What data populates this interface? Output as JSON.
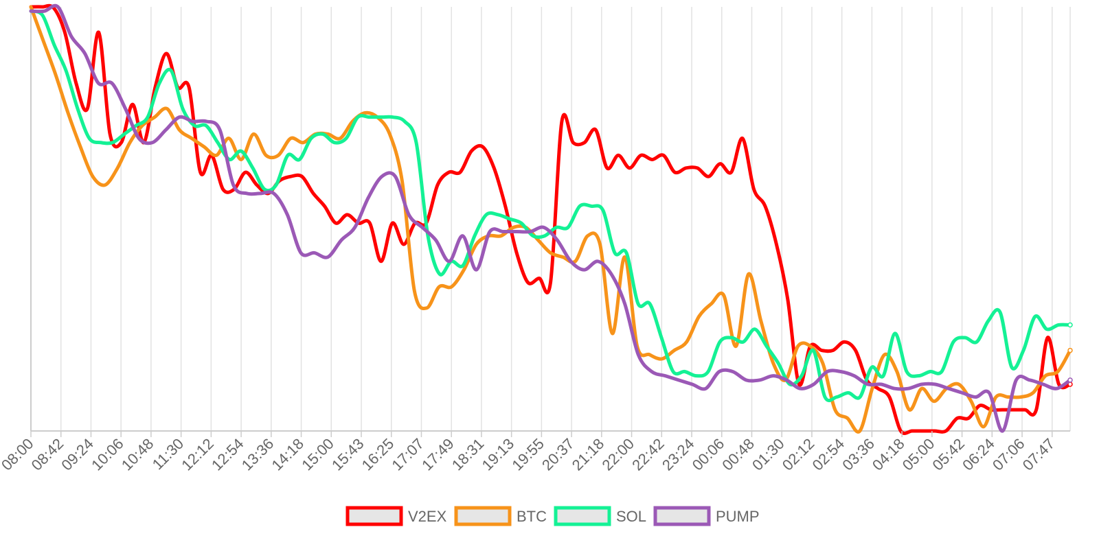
{
  "chart_data": {
    "type": "line",
    "title": "",
    "xlabel": "",
    "ylabel": "",
    "grid": {
      "vertical": true,
      "horizontal": false
    },
    "y_axis_labels": false,
    "ylim": [
      0,
      100
    ],
    "legend_position": "bottom-center",
    "x_tick_labels": [
      "08:00",
      "08:42",
      "09:24",
      "10:06",
      "10:48",
      "11:30",
      "12:12",
      "12:54",
      "13:36",
      "14:18",
      "15:00",
      "15:43",
      "16:25",
      "17:07",
      "17:49",
      "18:31",
      "19:13",
      "19:55",
      "20:37",
      "21:18",
      "22:00",
      "22:42",
      "23:24",
      "00:06",
      "00:48",
      "01:30",
      "02:12",
      "02:54",
      "03:36",
      "04:18",
      "05:00",
      "05:42",
      "06:24",
      "07:06",
      "07:47"
    ],
    "x_span_ticks": 34.6,
    "series": [
      {
        "name": "V2EX",
        "color": "#ff0000",
        "values": [
          100,
          100,
          99.8,
          94,
          82,
          76,
          94,
          70,
          68,
          77,
          68,
          81,
          89,
          81,
          81,
          61,
          65,
          57,
          57,
          61,
          58,
          56,
          59,
          60,
          60,
          56,
          53,
          49,
          51,
          49,
          49,
          40,
          49,
          44,
          49,
          49,
          58,
          61,
          61,
          66,
          67,
          62,
          53,
          42,
          35,
          36,
          35,
          73,
          68,
          68,
          71,
          62,
          65,
          62,
          65,
          64,
          65,
          61,
          62,
          62,
          60,
          63,
          61,
          69,
          57,
          53,
          44,
          31,
          11,
          20,
          19,
          19,
          21,
          19,
          12,
          10,
          8,
          0,
          0,
          0,
          0,
          0,
          3,
          3,
          6,
          5,
          5,
          5,
          5,
          5,
          22,
          11,
          11
        ]
      },
      {
        "name": "BTC",
        "color": "#f7931a",
        "values": [
          100,
          92,
          84,
          75,
          67,
          60,
          58,
          62,
          68,
          72,
          74,
          76,
          71,
          69,
          67,
          65,
          69,
          64,
          70,
          65,
          65,
          69,
          68,
          70,
          70,
          69,
          73,
          75,
          74,
          70,
          59,
          33,
          29,
          34,
          34,
          38,
          44,
          46,
          46,
          48,
          48,
          45,
          42,
          41,
          40,
          46,
          44,
          23,
          41,
          20,
          18,
          17,
          19,
          21,
          27,
          30,
          32,
          20,
          37,
          26,
          16,
          12,
          20,
          20,
          16,
          5,
          3,
          0,
          10,
          18,
          14,
          5,
          10,
          7,
          10,
          11,
          7,
          1,
          8,
          8,
          8,
          9,
          13,
          14,
          19
        ]
      },
      {
        "name": "SOL",
        "color": "#14f195",
        "values": [
          99,
          98,
          91,
          85,
          76,
          69,
          68,
          68,
          70,
          72,
          74,
          82,
          85,
          76,
          72,
          72,
          68,
          64,
          66,
          62,
          57,
          58,
          65,
          64,
          69,
          70,
          68,
          69,
          74,
          74,
          74,
          74,
          73,
          68,
          46,
          37,
          40,
          39,
          46,
          51,
          51,
          50,
          49,
          46,
          46,
          48,
          48,
          53,
          53,
          52,
          42,
          42,
          30,
          30,
          22,
          14,
          14,
          13,
          14,
          21,
          22,
          21,
          24,
          20,
          16,
          11,
          13,
          19,
          8,
          8,
          9,
          8,
          15,
          13,
          23,
          14,
          13,
          14,
          14,
          21,
          22,
          21,
          26,
          28,
          15,
          19,
          27,
          24,
          25,
          25
        ]
      },
      {
        "name": "PUMP",
        "color": "#9b59b6",
        "values": [
          99,
          99,
          100,
          93,
          89,
          82,
          82,
          76,
          69,
          68,
          71,
          74,
          73,
          73,
          71,
          58,
          56,
          56,
          56,
          51,
          42,
          42,
          41,
          45,
          48,
          55,
          60,
          60,
          51,
          48,
          45,
          40,
          46,
          38,
          47,
          47,
          47,
          47,
          48,
          45,
          40,
          38,
          40,
          37,
          30,
          18,
          14,
          13,
          12,
          11,
          10,
          14,
          14,
          12,
          12,
          13,
          12,
          10,
          11,
          14,
          14,
          13,
          11,
          11,
          10,
          10,
          11,
          11,
          10,
          9,
          8,
          9,
          0,
          12,
          12,
          11,
          10,
          12
        ]
      }
    ]
  }
}
